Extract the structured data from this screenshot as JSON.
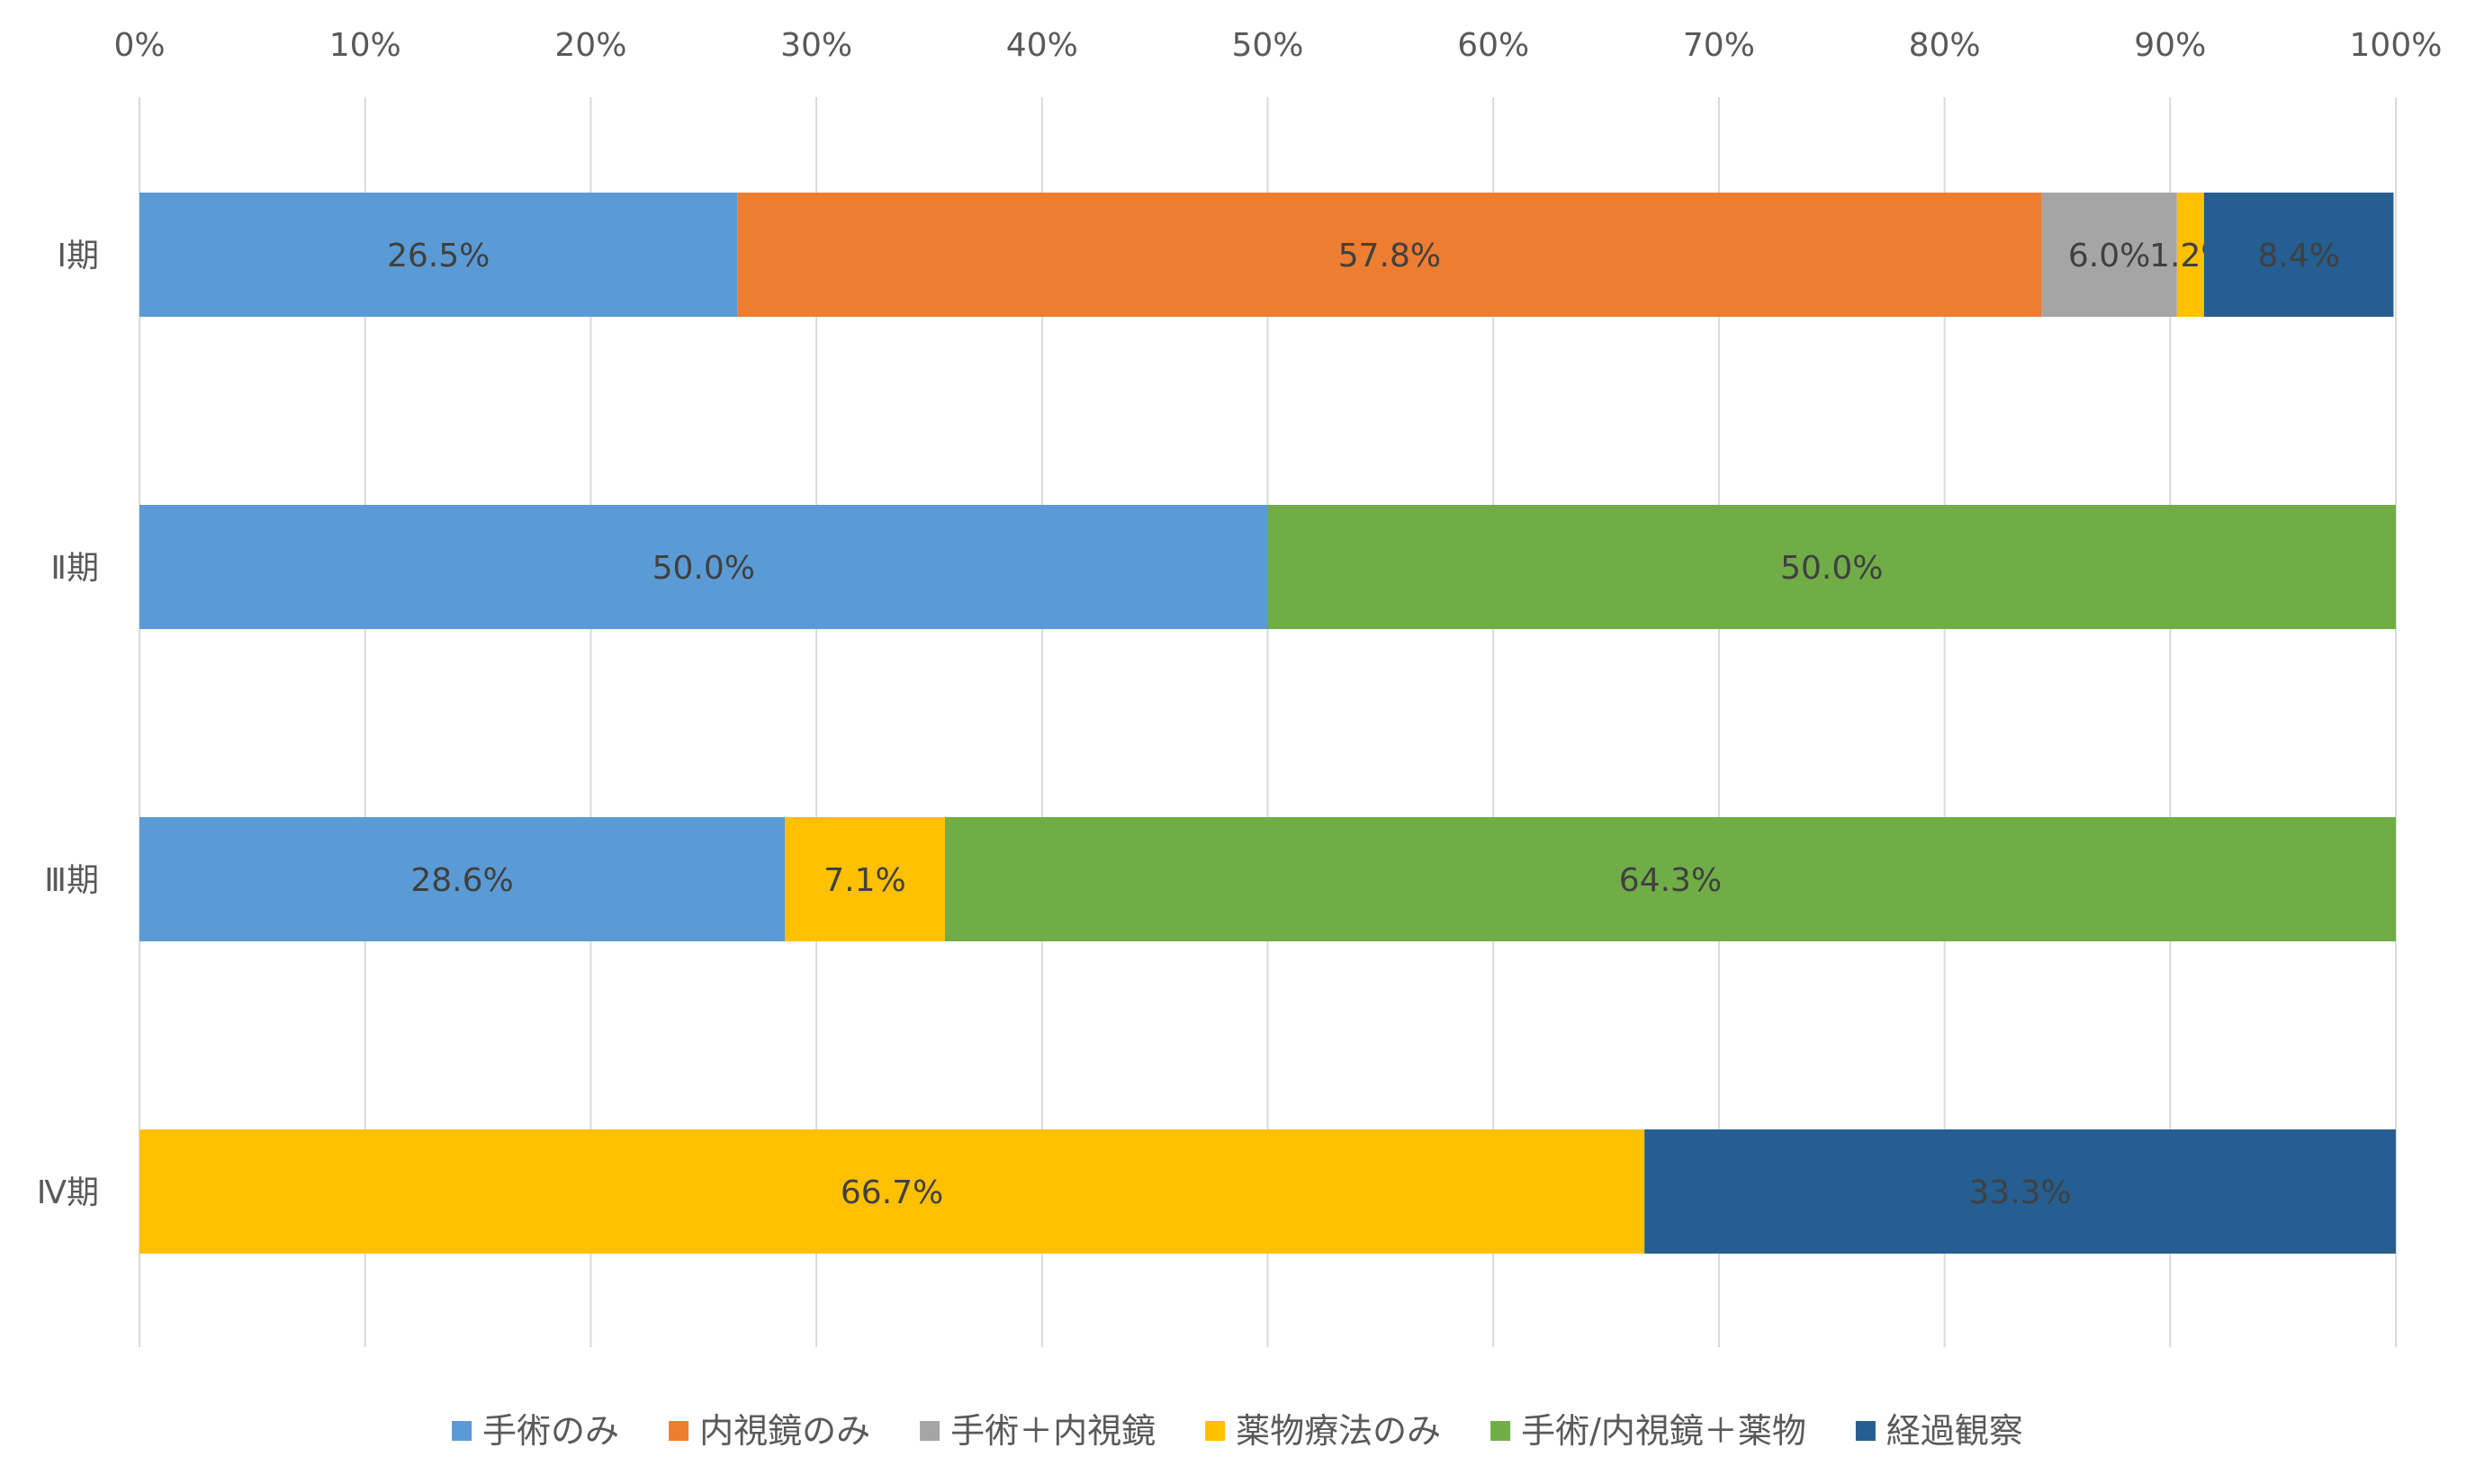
{
  "chart_data": {
    "type": "bar",
    "orientation": "horizontal",
    "stacked": "percent",
    "categories": [
      "Ⅰ期",
      "Ⅱ期",
      "Ⅲ期",
      "Ⅳ期"
    ],
    "series": [
      {
        "name": "手術のみ",
        "color": "#5b9bd5",
        "values": [
          26.5,
          50.0,
          28.6,
          0
        ],
        "labels": [
          "26.5%",
          "50.0%",
          "28.6%",
          ""
        ]
      },
      {
        "name": "内視鏡のみ",
        "color": "#ed7d31",
        "values": [
          57.8,
          0,
          0,
          0
        ],
        "labels": [
          "57.8%",
          "",
          "",
          ""
        ]
      },
      {
        "name": "手術＋内視鏡",
        "color": "#a5a5a5",
        "values": [
          6.0,
          0,
          0,
          0
        ],
        "labels": [
          "6.0%",
          "",
          "",
          ""
        ]
      },
      {
        "name": "薬物療法のみ",
        "color": "#ffc000",
        "values": [
          1.2,
          0,
          7.1,
          66.7
        ],
        "labels": [
          "1.2%",
          "",
          "7.1%",
          "66.7%"
        ]
      },
      {
        "name": "手術/内視鏡＋薬物",
        "color": "#70ad47",
        "values": [
          0,
          50.0,
          64.3,
          0
        ],
        "labels": [
          "",
          "50.0%",
          "64.3%",
          ""
        ]
      },
      {
        "name": "経過観察",
        "color": "#255e91",
        "values": [
          8.4,
          0,
          0,
          33.3
        ],
        "labels": [
          "8.4%",
          "",
          "",
          "33.3%"
        ]
      }
    ],
    "xlim": [
      0,
      100
    ],
    "xticks": [
      "0%",
      "10%",
      "20%",
      "30%",
      "40%",
      "50%",
      "60%",
      "70%",
      "80%",
      "90%",
      "100%"
    ],
    "axis_position": "top",
    "grid": "vertical",
    "legend": "bottom",
    "title": "",
    "xlabel": "",
    "ylabel": ""
  }
}
